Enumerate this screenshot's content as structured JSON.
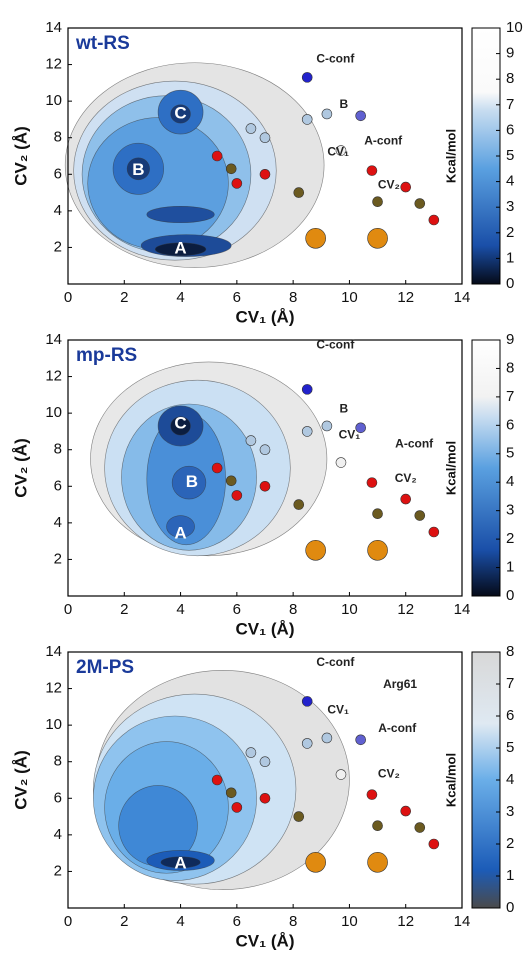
{
  "chart_data": [
    {
      "type": "contour",
      "title": "wt-RS",
      "x_label": "CV₁ (Å)",
      "y_label": "CV₂ (Å)",
      "xlim": [
        0,
        14
      ],
      "ylim": [
        0,
        14
      ],
      "xticks": [
        0,
        2,
        4,
        6,
        8,
        10,
        12,
        14
      ],
      "yticks": [
        2,
        4,
        6,
        8,
        10,
        12,
        14
      ],
      "colorbar_label": "Kcal/mol",
      "clim": [
        0,
        10
      ],
      "cticks": [
        0,
        1,
        2,
        3,
        4,
        5,
        6,
        7,
        8,
        9,
        10
      ],
      "annotations": [
        "A",
        "B",
        "C",
        "C-conf",
        "B",
        "A-conf",
        "CV₁",
        "CV₂"
      ]
    },
    {
      "type": "contour",
      "title": "mp-RS",
      "x_label": "CV₁ (Å)",
      "y_label": "CV₂ (Å)",
      "xlim": [
        0,
        14
      ],
      "ylim": [
        0,
        14
      ],
      "xticks": [
        0,
        2,
        4,
        6,
        8,
        10,
        12,
        14
      ],
      "yticks": [
        2,
        4,
        6,
        8,
        10,
        12,
        14
      ],
      "colorbar_label": "Kcal/mol",
      "clim": [
        0,
        9
      ],
      "cticks": [
        0,
        1,
        2,
        3,
        4,
        5,
        6,
        7,
        8,
        9
      ],
      "annotations": [
        "C",
        "B",
        "A",
        "C-conf",
        "B",
        "CV₁",
        "A-conf",
        "CV₂"
      ]
    },
    {
      "type": "contour",
      "title": "2M-PS",
      "x_label": "CV₁ (Å)",
      "y_label": "CV₂ (Å)",
      "xlim": [
        0,
        14
      ],
      "ylim": [
        0,
        14
      ],
      "xticks": [
        0,
        2,
        4,
        6,
        8,
        10,
        12,
        14
      ],
      "yticks": [
        2,
        4,
        6,
        8,
        10,
        12,
        14
      ],
      "colorbar_label": "Kcal/mol",
      "clim": [
        0,
        8
      ],
      "cticks": [
        0,
        1,
        2,
        3,
        4,
        5,
        6,
        7,
        8
      ],
      "annotations": [
        "A",
        "C-conf",
        "Arg61",
        "CV₁",
        "A-conf",
        "CV₂"
      ]
    }
  ]
}
